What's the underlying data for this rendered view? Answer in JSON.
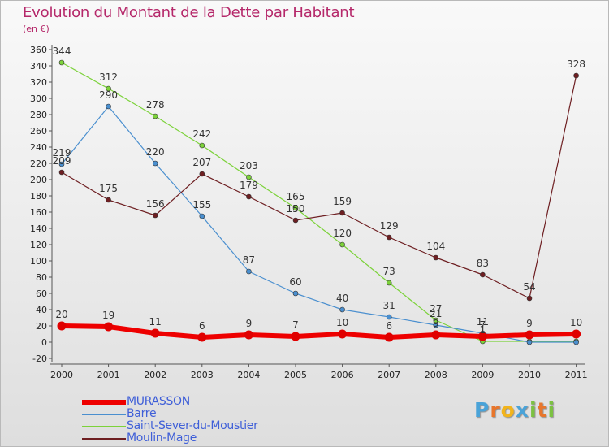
{
  "title": "Evolution du Montant de la Dette par Habitant",
  "unit": "(en €)",
  "logo": {
    "letters": [
      {
        "char": "P",
        "color": "#4aa3d8"
      },
      {
        "char": "r",
        "color": "#e8762c"
      },
      {
        "char": "o",
        "color": "#f2b41c"
      },
      {
        "char": "x",
        "color": "#4aa3d8"
      },
      {
        "char": "i",
        "color": "#7cc142"
      },
      {
        "char": "t",
        "color": "#e8762c"
      },
      {
        "char": "i",
        "color": "#7cc142"
      }
    ]
  },
  "chart_data": {
    "type": "line",
    "title": "Evolution du Montant de la Dette par Habitant",
    "subtitle": "(en €)",
    "x": [
      "2000",
      "2001",
      "2002",
      "2003",
      "2004",
      "2005",
      "2006",
      "2007",
      "2008",
      "2009",
      "2010",
      "2011"
    ],
    "ylim": [
      -20,
      360
    ],
    "yticks": [
      -20,
      0,
      20,
      40,
      60,
      80,
      100,
      120,
      140,
      160,
      180,
      200,
      220,
      240,
      260,
      280,
      300,
      320,
      340,
      360
    ],
    "grid": false,
    "legend_position": "bottom-left",
    "series": [
      {
        "name": "Saint-Sever-du-Moustier",
        "color": "#7cd23a",
        "values": [
          344,
          312,
          278,
          242,
          203,
          165,
          120,
          73,
          27,
          1,
          1,
          1
        ],
        "labels": [
          "344",
          "312",
          "278",
          "242",
          "203",
          "165",
          "120",
          "73",
          "27",
          "1",
          "",
          ""
        ]
      },
      {
        "name": "Barre",
        "color": "#4a8fcf",
        "values": [
          219,
          290,
          220,
          155,
          87,
          60,
          40,
          31,
          21,
          11,
          0,
          0
        ],
        "labels": [
          "219",
          "290",
          "220",
          "155",
          "87",
          "60",
          "40",
          "31",
          "21",
          "11",
          "",
          ""
        ]
      },
      {
        "name": "Moulin-Mage",
        "color": "#6e1f22",
        "values": [
          209,
          175,
          156,
          207,
          179,
          150,
          159,
          129,
          104,
          83,
          54,
          328
        ],
        "labels": [
          "209",
          "175",
          "156",
          "207",
          "179",
          "150",
          "159",
          "129",
          "104",
          "83",
          "54",
          "328"
        ]
      },
      {
        "name": "MURASSON",
        "color": "#ee0000",
        "values": [
          20,
          19,
          11,
          6,
          9,
          7,
          10,
          6,
          9,
          7,
          9,
          10
        ],
        "labels": [
          "20",
          "19",
          "11",
          "6",
          "9",
          "7",
          "10",
          "6",
          "9",
          "7",
          "9",
          "10"
        ]
      }
    ],
    "legend_order": [
      "MURASSON",
      "Barre",
      "Saint-Sever-du-Moustier",
      "Moulin-Mage"
    ]
  }
}
